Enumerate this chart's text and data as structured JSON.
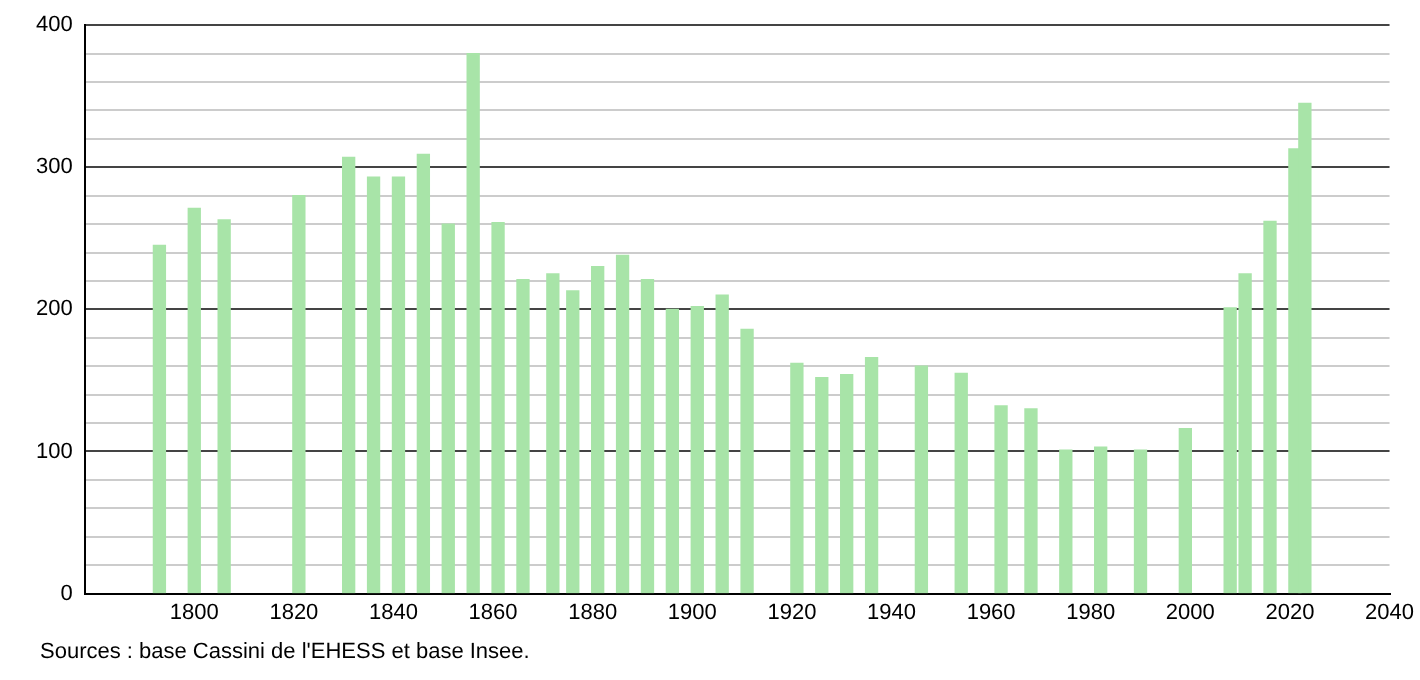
{
  "chart_data": {
    "type": "bar",
    "x": [
      1793,
      1800,
      1806,
      1821,
      1831,
      1836,
      1841,
      1846,
      1851,
      1856,
      1861,
      1866,
      1872,
      1876,
      1881,
      1886,
      1891,
      1896,
      1901,
      1906,
      1911,
      1921,
      1926,
      1931,
      1936,
      1946,
      1954,
      1962,
      1968,
      1975,
      1982,
      1990,
      1999,
      2008,
      2011,
      2016,
      2021,
      2023
    ],
    "values": [
      245,
      271,
      263,
      280,
      307,
      293,
      293,
      309,
      260,
      380,
      261,
      221,
      225,
      213,
      230,
      238,
      221,
      200,
      202,
      210,
      186,
      162,
      152,
      154,
      166,
      160,
      155,
      132,
      130,
      101,
      103,
      101,
      116,
      201,
      225,
      262,
      313,
      345
    ],
    "color": "#a8e4a8",
    "xlim": [
      1778,
      2040
    ],
    "xticks": [
      1800,
      1820,
      1840,
      1860,
      1880,
      1900,
      1920,
      1940,
      1960,
      1980,
      2000,
      2020,
      2040
    ],
    "ylim": [
      0,
      400
    ],
    "yticks": [
      0,
      {
        "value": 20,
        "label": null
      },
      {
        "value": 40,
        "label": null
      },
      {
        "value": 60,
        "label": null
      },
      {
        "value": 80,
        "label": null
      },
      100,
      {
        "value": 120,
        "label": null
      },
      {
        "value": 140,
        "label": null
      },
      {
        "value": 160,
        "label": null
      },
      {
        "value": 180,
        "label": null
      },
      200,
      {
        "value": 220,
        "label": null
      },
      {
        "value": 240,
        "label": null
      },
      {
        "value": 260,
        "label": null
      },
      {
        "value": 280,
        "label": null
      },
      300,
      {
        "value": 320,
        "label": null
      },
      {
        "value": 340,
        "label": null
      },
      {
        "value": 360,
        "label": null
      },
      {
        "value": 380,
        "label": null
      },
      400
    ],
    "grid": "y",
    "legend": false,
    "annotations": [
      "Sources : base Cassini de l'EHESS et base Insee."
    ]
  }
}
